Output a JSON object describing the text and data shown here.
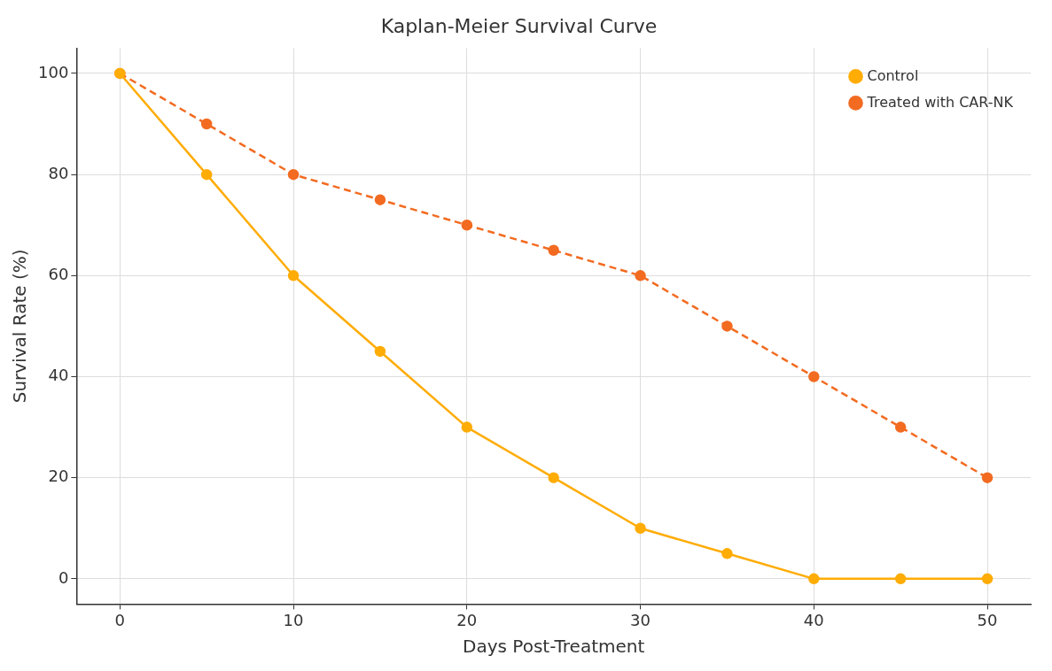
{
  "chart_data": {
    "type": "line",
    "title": "Kaplan-Meier Survival Curve",
    "xlabel": "Days Post-Treatment",
    "ylabel": "Survival Rate (%)",
    "x": [
      0,
      5,
      10,
      15,
      20,
      25,
      30,
      35,
      40,
      45,
      50
    ],
    "series": [
      {
        "name": "Control",
        "color": "#ffac05",
        "line_style": "solid",
        "values": [
          100,
          80,
          60,
          45,
          30,
          20,
          10,
          5,
          0,
          0,
          0
        ]
      },
      {
        "name": "Treated with CAR-NK",
        "color": "#f26b21",
        "line_style": "dashed",
        "values": [
          100,
          90,
          80,
          75,
          70,
          65,
          60,
          50,
          40,
          30,
          20
        ]
      }
    ],
    "xlim": [
      -2.5,
      52.5
    ],
    "xticks": [
      0,
      10,
      20,
      30,
      40,
      50
    ],
    "ylim": [
      -5,
      105
    ],
    "yticks": [
      0,
      20,
      40,
      60,
      80,
      100
    ],
    "grid": true,
    "legend": "top right",
    "marker": "circle"
  }
}
